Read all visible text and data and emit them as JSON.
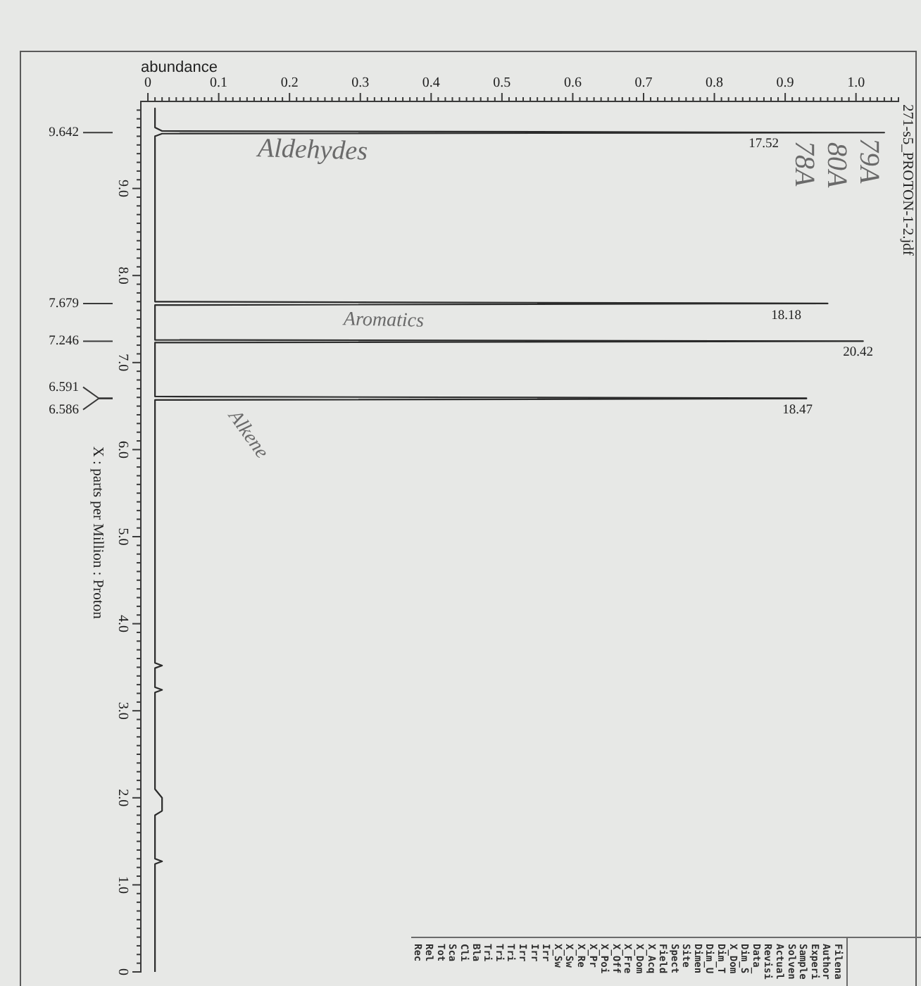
{
  "chart_data": {
    "type": "line",
    "orientation": "horizontal",
    "title": "271-s5_PROTON-1-2.jdf",
    "xlabel": "abundance",
    "ylabel": "X : parts per Million : Proton",
    "x": [
      9.92,
      9.7,
      9.66,
      9.642,
      9.63,
      9.6,
      7.7,
      7.679,
      7.66,
      7.26,
      7.246,
      7.23,
      6.61,
      6.591,
      6.586,
      6.57,
      3.55,
      3.52,
      3.49,
      3.27,
      3.24,
      3.21,
      2.1,
      2.0,
      1.85,
      1.8,
      1.3,
      1.27,
      1.24,
      0
    ],
    "values": [
      0.01,
      0.01,
      0.02,
      1.04,
      0.02,
      0.01,
      0.01,
      0.96,
      0.01,
      0.01,
      1.01,
      0.01,
      0.01,
      0.93,
      0.93,
      0.01,
      0.01,
      0.02,
      0.01,
      0.01,
      0.02,
      0.01,
      0.01,
      0.02,
      0.02,
      0.01,
      0.01,
      0.02,
      0.01,
      0.01
    ],
    "color": "#2b2b2b",
    "xlim": [
      -0.01,
      1.06
    ],
    "xticks": [
      0,
      {
        "value": 0.01,
        "label": null
      },
      {
        "value": 0.02,
        "label": null
      },
      {
        "value": 0.03,
        "label": null
      },
      {
        "value": 0.04,
        "label": null
      },
      {
        "value": 0.05,
        "label": null
      },
      {
        "value": 0.06,
        "label": null
      },
      {
        "value": 0.07,
        "label": null
      },
      {
        "value": 0.08,
        "label": null
      },
      {
        "value": 0.09,
        "label": null
      },
      0.1,
      {
        "value": 0.11,
        "label": null
      },
      {
        "value": 0.12,
        "label": null
      },
      {
        "value": 0.13,
        "label": null
      },
      {
        "value": 0.14,
        "label": null
      },
      {
        "value": 0.15,
        "label": null
      },
      {
        "value": 0.16,
        "label": null
      },
      {
        "value": 0.17,
        "label": null
      },
      {
        "value": 0.18,
        "label": null
      },
      {
        "value": 0.19,
        "label": null
      },
      0.2,
      {
        "value": 0.21,
        "label": null
      },
      {
        "value": 0.22,
        "label": null
      },
      {
        "value": 0.23,
        "label": null
      },
      {
        "value": 0.24,
        "label": null
      },
      {
        "value": 0.25,
        "label": null
      },
      {
        "value": 0.26,
        "label": null
      },
      {
        "value": 0.27,
        "label": null
      },
      {
        "value": 0.28,
        "label": null
      },
      {
        "value": 0.29,
        "label": null
      },
      0.3,
      {
        "value": 0.31,
        "label": null
      },
      {
        "value": 0.32,
        "label": null
      },
      {
        "value": 0.33,
        "label": null
      },
      {
        "value": 0.34,
        "label": null
      },
      {
        "value": 0.35,
        "label": null
      },
      {
        "value": 0.36,
        "label": null
      },
      {
        "value": 0.37,
        "label": null
      },
      {
        "value": 0.38,
        "label": null
      },
      {
        "value": 0.39,
        "label": null
      },
      0.4,
      {
        "value": 0.41,
        "label": null
      },
      {
        "value": 0.42,
        "label": null
      },
      {
        "value": 0.43,
        "label": null
      },
      {
        "value": 0.44,
        "label": null
      },
      {
        "value": 0.45,
        "label": null
      },
      {
        "value": 0.46,
        "label": null
      },
      {
        "value": 0.47,
        "label": null
      },
      {
        "value": 0.48,
        "label": null
      },
      {
        "value": 0.49,
        "label": null
      },
      0.5,
      {
        "value": 0.51,
        "label": null
      },
      {
        "value": 0.52,
        "label": null
      },
      {
        "value": 0.53,
        "label": null
      },
      {
        "value": 0.54,
        "label": null
      },
      {
        "value": 0.55,
        "label": null
      },
      {
        "value": 0.56,
        "label": null
      },
      {
        "value": 0.57,
        "label": null
      },
      {
        "value": 0.58,
        "label": null
      },
      {
        "value": 0.59,
        "label": null
      },
      0.6,
      {
        "value": 0.61,
        "label": null
      },
      {
        "value": 0.62,
        "label": null
      },
      {
        "value": 0.63,
        "label": null
      },
      {
        "value": 0.64,
        "label": null
      },
      {
        "value": 0.65,
        "label": null
      },
      {
        "value": 0.66,
        "label": null
      },
      {
        "value": 0.67,
        "label": null
      },
      {
        "value": 0.68,
        "label": null
      },
      {
        "value": 0.69,
        "label": null
      },
      0.7,
      {
        "value": 0.71,
        "label": null
      },
      {
        "value": 0.72,
        "label": null
      },
      {
        "value": 0.73,
        "label": null
      },
      {
        "value": 0.74,
        "label": null
      },
      {
        "value": 0.75,
        "label": null
      },
      {
        "value": 0.76,
        "label": null
      },
      {
        "value": 0.77,
        "label": null
      },
      {
        "value": 0.78,
        "label": null
      },
      {
        "value": 0.79,
        "label": null
      },
      0.8,
      {
        "value": 0.81,
        "label": null
      },
      {
        "value": 0.82,
        "label": null
      },
      {
        "value": 0.83,
        "label": null
      },
      {
        "value": 0.84,
        "label": null
      },
      {
        "value": 0.85,
        "label": null
      },
      {
        "value": 0.86,
        "label": null
      },
      {
        "value": 0.87,
        "label": null
      },
      {
        "value": 0.88,
        "label": null
      },
      {
        "value": 0.89,
        "label": null
      },
      0.9,
      {
        "value": 0.91,
        "label": null
      },
      {
        "value": 0.92,
        "label": null
      },
      {
        "value": 0.93,
        "label": null
      },
      {
        "value": 0.94,
        "label": null
      },
      {
        "value": 0.95,
        "label": null
      },
      {
        "value": 0.96,
        "label": null
      },
      {
        "value": 0.97,
        "label": null
      },
      {
        "value": 0.98,
        "label": null
      },
      {
        "value": 0.99,
        "label": null
      },
      {
        "value": 1,
        "label": "1.0"
      },
      {
        "value": 1.01,
        "label": null
      },
      {
        "value": 1.02,
        "label": null
      },
      {
        "value": 1.03,
        "label": null
      },
      {
        "value": 1.04,
        "label": null
      },
      {
        "value": 1.05,
        "label": null
      },
      {
        "value": 1.06,
        "label": null
      }
    ],
    "ylim": [
      0,
      10
    ],
    "yticks": [
      0,
      {
        "value": 0.1,
        "label": null
      },
      {
        "value": 0.2,
        "label": null
      },
      {
        "value": 0.3,
        "label": null
      },
      {
        "value": 0.4,
        "label": null
      },
      {
        "value": 0.5,
        "label": null
      },
      {
        "value": 0.6,
        "label": null
      },
      {
        "value": 0.7,
        "label": null
      },
      {
        "value": 0.8,
        "label": null
      },
      {
        "value": 0.9,
        "label": null
      },
      {
        "value": 1,
        "label": "1.0"
      },
      {
        "value": 1.1,
        "label": null
      },
      {
        "value": 1.2,
        "label": null
      },
      {
        "value": 1.3,
        "label": null
      },
      {
        "value": 1.4,
        "label": null
      },
      {
        "value": 1.5,
        "label": null
      },
      {
        "value": 1.6,
        "label": null
      },
      {
        "value": 1.7,
        "label": null
      },
      {
        "value": 1.8,
        "label": null
      },
      {
        "value": 1.9,
        "label": null
      },
      {
        "value": 2,
        "label": "2.0"
      },
      {
        "value": 2.1,
        "label": null
      },
      {
        "value": 2.2,
        "label": null
      },
      {
        "value": 2.3,
        "label": null
      },
      {
        "value": 2.4,
        "label": null
      },
      {
        "value": 2.5,
        "label": null
      },
      {
        "value": 2.6,
        "label": null
      },
      {
        "value": 2.7,
        "label": null
      },
      {
        "value": 2.8,
        "label": null
      },
      {
        "value": 2.9,
        "label": null
      },
      {
        "value": 3,
        "label": "3.0"
      },
      {
        "value": 3.1,
        "label": null
      },
      {
        "value": 3.2,
        "label": null
      },
      {
        "value": 3.3,
        "label": null
      },
      {
        "value": 3.4,
        "label": null
      },
      {
        "value": 3.5,
        "label": null
      },
      {
        "value": 3.6,
        "label": null
      },
      {
        "value": 3.7,
        "label": null
      },
      {
        "value": 3.8,
        "label": null
      },
      {
        "value": 3.9,
        "label": null
      },
      {
        "value": 4,
        "label": "4.0"
      },
      {
        "value": 4.1,
        "label": null
      },
      {
        "value": 4.2,
        "label": null
      },
      {
        "value": 4.3,
        "label": null
      },
      {
        "value": 4.4,
        "label": null
      },
      {
        "value": 4.5,
        "label": null
      },
      {
        "value": 4.6,
        "label": null
      },
      {
        "value": 4.7,
        "label": null
      },
      {
        "value": 4.8,
        "label": null
      },
      {
        "value": 4.9,
        "label": null
      },
      {
        "value": 5,
        "label": "5.0"
      },
      {
        "value": 5.1,
        "label": null
      },
      {
        "value": 5.2,
        "label": null
      },
      {
        "value": 5.3,
        "label": null
      },
      {
        "value": 5.4,
        "label": null
      },
      {
        "value": 5.5,
        "label": null
      },
      {
        "value": 5.6,
        "label": null
      },
      {
        "value": 5.7,
        "label": null
      },
      {
        "value": 5.8,
        "label": null
      },
      {
        "value": 5.9,
        "label": null
      },
      {
        "value": 6,
        "label": "6.0"
      },
      {
        "value": 6.1,
        "label": null
      },
      {
        "value": 6.2,
        "label": null
      },
      {
        "value": 6.3,
        "label": null
      },
      {
        "value": 6.4,
        "label": null
      },
      {
        "value": 6.5,
        "label": null
      },
      {
        "value": 6.6,
        "label": null
      },
      {
        "value": 6.7,
        "label": null
      },
      {
        "value": 6.8,
        "label": null
      },
      {
        "value": 6.9,
        "label": null
      },
      {
        "value": 7,
        "label": "7.0"
      },
      {
        "value": 7.1,
        "label": null
      },
      {
        "value": 7.2,
        "label": null
      },
      {
        "value": 7.3,
        "label": null
      },
      {
        "value": 7.4,
        "label": null
      },
      {
        "value": 7.5,
        "label": null
      },
      {
        "value": 7.6,
        "label": null
      },
      {
        "value": 7.7,
        "label": null
      },
      {
        "value": 7.8,
        "label": null
      },
      {
        "value": 7.9,
        "label": null
      },
      {
        "value": 8,
        "label": "8.0"
      },
      {
        "value": 8.1,
        "label": null
      },
      {
        "value": 8.2,
        "label": null
      },
      {
        "value": 8.3,
        "label": null
      },
      {
        "value": 8.4,
        "label": null
      },
      {
        "value": 8.5,
        "label": null
      },
      {
        "value": 8.6,
        "label": null
      },
      {
        "value": 8.7,
        "label": null
      },
      {
        "value": 8.8,
        "label": null
      },
      {
        "value": 8.9,
        "label": null
      },
      {
        "value": 9,
        "label": "9.0"
      },
      {
        "value": 9.1,
        "label": null
      },
      {
        "value": 9.2,
        "label": null
      },
      {
        "value": 9.3,
        "label": null
      },
      {
        "value": 9.4,
        "label": null
      },
      {
        "value": 9.5,
        "label": null
      },
      {
        "value": 9.6,
        "label": null
      },
      {
        "value": 9.7,
        "label": null
      },
      {
        "value": 9.8,
        "label": null
      },
      {
        "value": 9.9,
        "label": null
      }
    ],
    "annotations": [
      "9.642",
      "7.679",
      "7.246",
      "6.591",
      "6.586",
      "17.52",
      "18.18",
      "20.42",
      "18.47",
      "Aldehydes",
      "Aromatics",
      "Alkene",
      "79A",
      "80A",
      "78A",
      "Filena",
      "Author",
      "Experi",
      "Sample",
      "Solven",
      "Actual",
      "Revisi",
      "Data_",
      "Dim_S",
      "X_Dom",
      "Dim_T",
      "Dim_U",
      "Dimen",
      "Site",
      "Spect",
      "Field",
      "X_Acq",
      "X_Dom",
      "X_Fre",
      "X_Off",
      "X_Poi",
      "X_Pr",
      "X_Re",
      "X_Sw",
      "X_Sw",
      "Irr",
      "Irr",
      "Irr",
      "Tri",
      "Tri",
      "Tri",
      "Bla",
      "Cli",
      "Sca",
      "Tot",
      "Rel",
      "Rec"
    ]
  }
}
